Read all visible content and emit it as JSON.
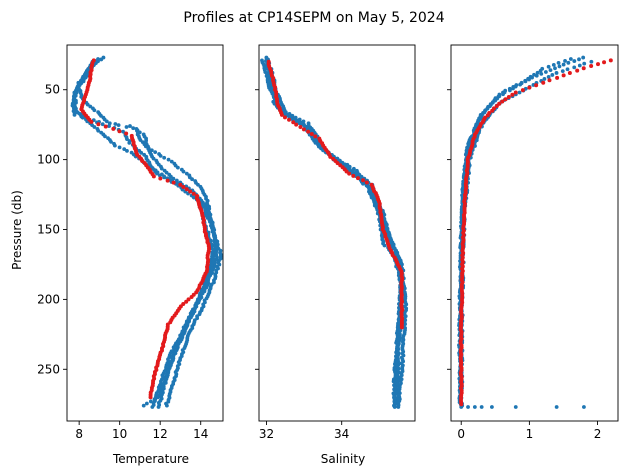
{
  "title": "Profiles at CP14SEPM on May 5, 2024",
  "colors": {
    "profile": "#1f77b4",
    "highlight": "#e31a1c",
    "axes": "#000000",
    "background": "#ffffff"
  },
  "chart_data": [
    {
      "type": "scatter",
      "xlabel": "Temperature",
      "ylabel": "Pressure (db)",
      "xlim": [
        7.4,
        15.1
      ],
      "ylim": [
        287,
        18
      ],
      "x_ticks": [
        8,
        10,
        12,
        14
      ],
      "x_tick_labels": [
        "8",
        "10",
        "12",
        "14"
      ],
      "y_ticks": [
        50,
        100,
        150,
        200,
        250
      ],
      "y_tick_labels": [
        "50",
        "100",
        "150",
        "200",
        "250"
      ],
      "y_inverted": true,
      "series": [
        {
          "role": "all profiles",
          "color": "#1f77b4",
          "profiles": [
            [
              [
                9.2,
                27
              ],
              [
                8.5,
                35
              ],
              [
                8.0,
                45
              ],
              [
                7.8,
                55
              ],
              [
                7.8,
                65
              ],
              [
                8.5,
                72
              ],
              [
                9.5,
                76
              ],
              [
                10.2,
                80
              ],
              [
                10.5,
                88
              ],
              [
                11.3,
                98
              ],
              [
                11.8,
                110
              ],
              [
                13.0,
                118
              ],
              [
                13.8,
                125
              ],
              [
                14.4,
                138
              ],
              [
                14.8,
                160
              ],
              [
                14.4,
                180
              ],
              [
                13.9,
                200
              ],
              [
                13.2,
                220
              ],
              [
                12.5,
                240
              ],
              [
                12.0,
                260
              ],
              [
                11.6,
                277
              ]
            ],
            [
              [
                8.9,
                28
              ],
              [
                8.3,
                38
              ],
              [
                7.9,
                50
              ],
              [
                7.7,
                60
              ],
              [
                7.8,
                68
              ],
              [
                9.0,
                73
              ],
              [
                10.5,
                76
              ],
              [
                11.2,
                82
              ],
              [
                11.5,
                95
              ],
              [
                12.0,
                105
              ],
              [
                12.8,
                115
              ],
              [
                13.6,
                122
              ],
              [
                14.1,
                132
              ],
              [
                14.6,
                150
              ],
              [
                14.8,
                170
              ],
              [
                14.3,
                190
              ],
              [
                13.6,
                210
              ],
              [
                13.0,
                230
              ],
              [
                12.4,
                250
              ],
              [
                12.1,
                268
              ],
              [
                11.9,
                277
              ]
            ],
            [
              [
                8.7,
                30
              ],
              [
                8.2,
                42
              ],
              [
                7.8,
                52
              ],
              [
                7.7,
                63
              ],
              [
                8.2,
                70
              ],
              [
                9.2,
                82
              ],
              [
                9.8,
                90
              ],
              [
                10.6,
                95
              ],
              [
                11.2,
                102
              ],
              [
                12.2,
                112
              ],
              [
                13.0,
                120
              ],
              [
                13.9,
                130
              ],
              [
                14.2,
                145
              ],
              [
                14.6,
                165
              ],
              [
                14.6,
                178
              ],
              [
                14.0,
                198
              ],
              [
                13.4,
                215
              ],
              [
                12.8,
                235
              ],
              [
                12.3,
                255
              ],
              [
                11.9,
                270
              ],
              [
                11.2,
                276
              ]
            ],
            [
              [
                8.8,
                31
              ],
              [
                8.4,
                40
              ],
              [
                8.0,
                48
              ],
              [
                8.2,
                58
              ],
              [
                8.9,
                66
              ],
              [
                9.5,
                74
              ],
              [
                10.8,
                78
              ],
              [
                11.0,
                86
              ],
              [
                11.4,
                92
              ],
              [
                12.4,
                100
              ],
              [
                13.3,
                110
              ],
              [
                13.9,
                118
              ],
              [
                14.3,
                128
              ],
              [
                14.7,
                155
              ],
              [
                15.0,
                168
              ],
              [
                14.7,
                185
              ],
              [
                14.1,
                205
              ],
              [
                13.5,
                222
              ],
              [
                13.0,
                242
              ],
              [
                12.6,
                262
              ],
              [
                12.3,
                276
              ]
            ]
          ]
        },
        {
          "role": "highlighted profile",
          "color": "#e31a1c",
          "points": [
            [
              8.7,
              29
            ],
            [
              8.6,
              36
            ],
            [
              8.5,
              45
            ],
            [
              8.3,
              55
            ],
            [
              8.1,
              64
            ],
            [
              8.6,
              73
            ],
            [
              9.7,
              78
            ],
            [
              10.6,
              83
            ],
            [
              10.8,
              95
            ],
            [
              11.3,
              104
            ],
            [
              11.7,
              112
            ],
            [
              13.0,
              118
            ],
            [
              13.8,
              126
            ],
            [
              14.1,
              140
            ],
            [
              14.2,
              150
            ],
            [
              14.4,
              162
            ],
            [
              14.3,
              180
            ],
            [
              13.8,
              195
            ],
            [
              13.0,
              205
            ],
            [
              12.4,
              218
            ],
            [
              12.1,
              235
            ],
            [
              11.7,
              255
            ],
            [
              11.5,
              270
            ]
          ]
        }
      ]
    },
    {
      "type": "scatter",
      "xlabel": "Salinity",
      "ylabel": "",
      "xlim": [
        31.8,
        35.95
      ],
      "ylim": [
        287,
        18
      ],
      "x_ticks": [
        32,
        34
      ],
      "x_tick_labels": [
        "32",
        "34"
      ],
      "y_inverted": true,
      "series": [
        {
          "role": "all profiles",
          "color": "#1f77b4",
          "profiles": [
            [
              [
                32.0,
                27
              ],
              [
                32.2,
                42
              ],
              [
                32.2,
                60
              ],
              [
                32.6,
                70
              ],
              [
                33.2,
                78
              ],
              [
                33.5,
                92
              ],
              [
                34.1,
                105
              ],
              [
                34.7,
                120
              ],
              [
                35.0,
                140
              ],
              [
                35.1,
                160
              ],
              [
                35.5,
                170
              ],
              [
                35.6,
                200
              ],
              [
                35.5,
                240
              ],
              [
                35.4,
                277
              ]
            ],
            [
              [
                32.0,
                28
              ],
              [
                32.1,
                45
              ],
              [
                32.3,
                62
              ],
              [
                32.8,
                72
              ],
              [
                33.3,
                82
              ],
              [
                33.6,
                95
              ],
              [
                34.4,
                108
              ],
              [
                34.9,
                125
              ],
              [
                35.1,
                145
              ],
              [
                35.3,
                165
              ],
              [
                35.6,
                185
              ],
              [
                35.5,
                220
              ],
              [
                35.4,
                260
              ],
              [
                35.4,
                276
              ]
            ],
            [
              [
                31.9,
                29
              ],
              [
                32.1,
                50
              ],
              [
                32.4,
                65
              ],
              [
                33.0,
                75
              ],
              [
                33.3,
                88
              ],
              [
                33.8,
                100
              ],
              [
                34.6,
                115
              ],
              [
                35.0,
                132
              ],
              [
                35.2,
                152
              ],
              [
                35.5,
                168
              ],
              [
                35.6,
                190
              ],
              [
                35.5,
                230
              ],
              [
                35.5,
                276
              ]
            ],
            [
              [
                32.0,
                30
              ],
              [
                32.2,
                48
              ],
              [
                32.5,
                66
              ],
              [
                33.1,
                74
              ],
              [
                33.4,
                90
              ],
              [
                34.0,
                102
              ],
              [
                34.8,
                118
              ],
              [
                35.1,
                138
              ],
              [
                35.3,
                158
              ],
              [
                35.6,
                175
              ],
              [
                35.7,
                205
              ],
              [
                35.6,
                250
              ],
              [
                35.5,
                277
              ]
            ]
          ]
        },
        {
          "role": "highlighted profile",
          "color": "#e31a1c",
          "points": [
            [
              32.05,
              30
            ],
            [
              32.2,
              45
            ],
            [
              32.3,
              60
            ],
            [
              32.4,
              68
            ],
            [
              32.8,
              75
            ],
            [
              33.4,
              85
            ],
            [
              33.7,
              98
            ],
            [
              34.2,
              110
            ],
            [
              34.8,
              118
            ],
            [
              35.0,
              130
            ],
            [
              35.1,
              150
            ],
            [
              35.3,
              165
            ],
            [
              35.6,
              180
            ],
            [
              35.6,
              200
            ],
            [
              35.6,
              220
            ]
          ]
        }
      ]
    },
    {
      "type": "scatter",
      "xlabel": "",
      "ylabel": "",
      "xlim": [
        -0.15,
        2.3
      ],
      "ylim": [
        287,
        18
      ],
      "x_ticks": [
        0,
        1,
        2
      ],
      "x_tick_labels": [
        "0",
        "1",
        "2"
      ],
      "y_inverted": true,
      "series": [
        {
          "role": "all profiles",
          "color": "#1f77b4",
          "profiles": [
            [
              [
                1.8,
                27
              ],
              [
                1.5,
                32
              ],
              [
                1.1,
                40
              ],
              [
                0.6,
                52
              ],
              [
                0.3,
                68
              ],
              [
                0.1,
                90
              ],
              [
                0.03,
                120
              ],
              [
                0.0,
                160
              ],
              [
                -0.02,
                220
              ],
              [
                -0.02,
                275
              ]
            ],
            [
              [
                1.6,
                28
              ],
              [
                1.2,
                35
              ],
              [
                0.9,
                45
              ],
              [
                0.5,
                56
              ],
              [
                0.25,
                72
              ],
              [
                0.08,
                95
              ],
              [
                0.02,
                130
              ],
              [
                0.0,
                180
              ],
              [
                -0.01,
                240
              ],
              [
                0.0,
                276
              ]
            ],
            [
              [
                1.9,
                30
              ],
              [
                1.4,
                38
              ],
              [
                1.0,
                48
              ],
              [
                0.55,
                60
              ],
              [
                0.3,
                75
              ],
              [
                0.12,
                100
              ],
              [
                0.04,
                140
              ],
              [
                0.01,
                200
              ],
              [
                0.0,
                276
              ]
            ]
          ],
          "bottom_points": [
            [
              0.0,
              277
            ],
            [
              0.1,
              277
            ],
            [
              0.2,
              277
            ],
            [
              0.3,
              277
            ],
            [
              0.45,
              277
            ],
            [
              0.8,
              277
            ],
            [
              1.4,
              277
            ],
            [
              1.8,
              277
            ]
          ]
        },
        {
          "role": "highlighted profile",
          "color": "#e31a1c",
          "points": [
            [
              2.2,
              29
            ],
            [
              1.9,
              33
            ],
            [
              1.6,
              38
            ],
            [
              1.2,
              45
            ],
            [
              0.8,
              52
            ],
            [
              0.55,
              60
            ],
            [
              0.35,
              70
            ],
            [
              0.2,
              82
            ],
            [
              0.1,
              100
            ],
            [
              0.05,
              130
            ],
            [
              0.02,
              170
            ],
            [
              0.0,
              220
            ],
            [
              0.0,
              275
            ]
          ]
        }
      ]
    }
  ]
}
